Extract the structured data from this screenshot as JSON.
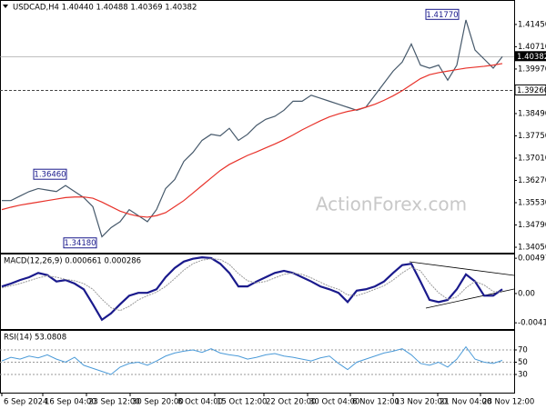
{
  "chart_data": [
    {
      "type": "line",
      "title": "USDCAD,H4 1.40440 1.40488 1.40369 1.40382",
      "xlim": [
        0,
        56.3
      ],
      "ylim": [
        1.3387,
        1.419
      ],
      "yticks": [
        {
          "value": 1.4145,
          "label": "1.41450"
        },
        {
          "value": 1.4071,
          "label": "1.40710"
        },
        {
          "value": 1.3997,
          "label": "1.39970"
        },
        {
          "value": 1.3849,
          "label": "1.38490"
        },
        {
          "value": 1.3775,
          "label": "1.37750"
        },
        {
          "value": 1.3701,
          "label": "1.37010"
        },
        {
          "value": 1.3627,
          "label": "1.36270"
        },
        {
          "value": 1.3553,
          "label": "1.35530"
        },
        {
          "value": 1.3479,
          "label": "1.34790"
        },
        {
          "value": 1.3405,
          "label": "1.34050"
        }
      ],
      "series": [
        {
          "color": "#46596b",
          "values": [
            1.356,
            1.356,
            1.3575,
            1.359,
            1.36,
            1.3595,
            1.359,
            1.361,
            1.359,
            1.357,
            1.354,
            1.344,
            1.347,
            1.349,
            1.353,
            1.351,
            1.349,
            1.353,
            1.36,
            1.363,
            1.369,
            1.372,
            1.376,
            1.378,
            1.3775,
            1.38,
            1.376,
            1.378,
            1.381,
            1.383,
            1.384,
            1.386,
            1.389,
            1.389,
            1.391,
            1.39,
            1.389,
            1.388,
            1.387,
            1.386,
            1.387,
            1.391,
            1.395,
            1.399,
            1.402,
            1.408,
            1.401,
            1.4,
            1.401,
            1.396,
            1.401,
            1.416,
            1.406,
            1.403,
            1.4,
            1.4038
          ]
        },
        {
          "color": "#e8322a",
          "values": [
            1.353,
            1.3538,
            1.3545,
            1.355,
            1.3555,
            1.356,
            1.3565,
            1.357,
            1.3572,
            1.3572,
            1.3568,
            1.3555,
            1.354,
            1.3525,
            1.3515,
            1.3508,
            1.3505,
            1.351,
            1.352,
            1.354,
            1.356,
            1.3585,
            1.361,
            1.3635,
            1.366,
            1.368,
            1.3695,
            1.371,
            1.3722,
            1.3735,
            1.3748,
            1.3762,
            1.3778,
            1.3795,
            1.381,
            1.3825,
            1.3838,
            1.3848,
            1.3856,
            1.3862,
            1.387,
            1.388,
            1.3893,
            1.3908,
            1.3925,
            1.3945,
            1.3965,
            1.3978,
            1.3985,
            1.399,
            1.3995,
            1.4,
            1.4003,
            1.4006,
            1.401,
            1.4015
          ]
        }
      ],
      "annotations": [
        {
          "value": 1.4177,
          "label": "1.41770"
        },
        {
          "value": 1.3646,
          "label": "1.36460"
        },
        {
          "value": 1.3418,
          "label": "1.34180"
        }
      ],
      "current_price": {
        "value": 1.40382,
        "label": "1.40382"
      },
      "level": {
        "value": 1.3926,
        "label": "1.39260"
      },
      "watermark": "ActionForex.com"
    },
    {
      "type": "line",
      "title": "MACD(12,26,9) 0.000661 0.000286",
      "xlim": [
        0,
        56.3
      ],
      "ylim": [
        -0.005,
        0.0055
      ],
      "yticks": [
        0.004971,
        {
          "value": 0,
          "label": "0.00"
        },
        -0.004126
      ],
      "series": [
        {
          "color": "#1a1a8c",
          "values": [
            0.001,
            0.0014,
            0.0019,
            0.0023,
            0.0029,
            0.0026,
            0.0017,
            0.0019,
            0.0014,
            0.0006,
            -0.0015,
            -0.0037,
            -0.0028,
            -0.0015,
            -0.0003,
            0.0001,
            0.0001,
            0.0006,
            0.0023,
            0.0036,
            0.0045,
            0.0049,
            0.0051,
            0.005,
            0.0042,
            0.0029,
            0.001,
            0.001,
            0.0017,
            0.0023,
            0.0029,
            0.0032,
            0.0029,
            0.0023,
            0.0017,
            0.001,
            0.0006,
            0.0001,
            -0.0012,
            0.0004,
            0.0006,
            0.001,
            0.0017,
            0.0029,
            0.004,
            0.0042,
            0.0017,
            -0.0009,
            -0.0012,
            -0.0009,
            0.0006,
            0.0027,
            0.0017,
            -0.0003,
            -0.0003,
            0.0006
          ]
        },
        {
          "color": "#9a9a9a",
          "values": [
            0.0008,
            0.0011,
            0.0014,
            0.0018,
            0.0022,
            0.0025,
            0.0023,
            0.002,
            0.0018,
            0.0014,
            0.0006,
            -0.0008,
            -0.002,
            -0.0024,
            -0.0018,
            -0.0009,
            -0.0003,
            0.0002,
            0.001,
            0.0021,
            0.0033,
            0.0042,
            0.0047,
            0.0049,
            0.0048,
            0.0041,
            0.0028,
            0.0018,
            0.0015,
            0.0017,
            0.0022,
            0.0027,
            0.0029,
            0.0027,
            0.0022,
            0.0016,
            0.001,
            0.0006,
            -0.0002,
            -0.0003,
            0.0001,
            0.0006,
            0.0011,
            0.0019,
            0.0029,
            0.0037,
            0.0032,
            0.0015,
            0.0001,
            -0.0008,
            -0.0005,
            0.0008,
            0.0017,
            0.0012,
            0.0003,
            0.0002
          ]
        }
      ]
    },
    {
      "type": "line",
      "title": "RSI(14) 53.0808",
      "xlim": [
        0,
        56.3
      ],
      "ylim": [
        0,
        100
      ],
      "yticks": [
        70,
        50,
        30
      ],
      "grid": true,
      "series": [
        {
          "color": "#4a9ad8",
          "values": [
            52,
            58,
            55,
            60,
            57,
            62,
            55,
            50,
            58,
            45,
            40,
            35,
            30,
            42,
            48,
            50,
            45,
            52,
            60,
            65,
            68,
            70,
            66,
            72,
            65,
            62,
            60,
            55,
            58,
            62,
            64,
            60,
            58,
            55,
            52,
            57,
            60,
            48,
            38,
            50,
            55,
            60,
            65,
            68,
            72,
            62,
            48,
            45,
            50,
            42,
            55,
            75,
            55,
            50,
            48,
            53
          ]
        }
      ],
      "xticks": [
        {
          "value": 0,
          "label": "6 Sep 2024"
        },
        {
          "value": 4.5,
          "label": "16 Sep 04:00"
        },
        {
          "value": 9.3,
          "label": "23 Sep 12:00"
        },
        {
          "value": 14.1,
          "label": "30 Sep 20:00"
        },
        {
          "value": 19.1,
          "label": "8 Oct 04:00"
        },
        {
          "value": 23.4,
          "label": "15 Oct 12:00"
        },
        {
          "value": 28.8,
          "label": "22 Oct 20:00"
        },
        {
          "value": 33.6,
          "label": "30 Oct 04:00"
        },
        {
          "value": 38.3,
          "label": "6 Nov 12:00"
        },
        {
          "value": 43,
          "label": "13 Nov 20:00"
        },
        {
          "value": 47.9,
          "label": "21 Nov 04:00"
        },
        {
          "value": 52.6,
          "label": "28 Nov 12:00"
        }
      ]
    }
  ]
}
